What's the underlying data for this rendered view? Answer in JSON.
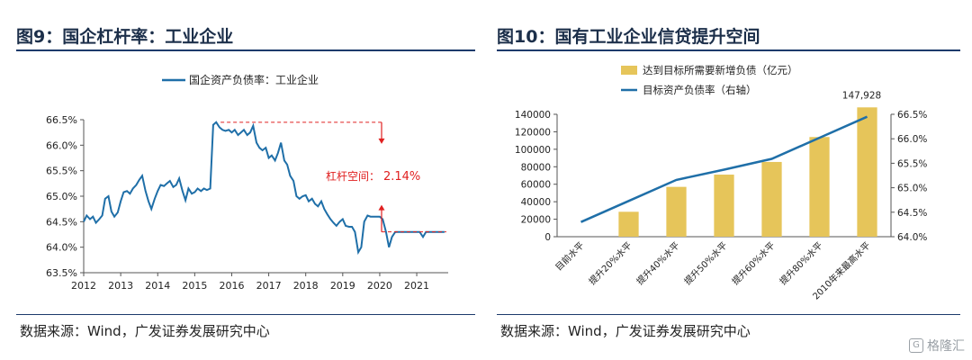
{
  "left": {
    "title": "图9：国企杠杆率：工业企业",
    "source": "数据来源：Wind，广发证券发展研究中心",
    "chart_data": {
      "type": "line",
      "title": "",
      "xlabel": "",
      "ylabel": "",
      "ylim": [
        63.5,
        66.5
      ],
      "yticks": [
        "63.5%",
        "64.0%",
        "64.5%",
        "65.0%",
        "65.5%",
        "66.0%",
        "66.5%"
      ],
      "xticks": [
        "2012",
        "2013",
        "2014",
        "2015",
        "2016",
        "2017",
        "2018",
        "2019",
        "2020",
        "2021"
      ],
      "legend_position": "top-center",
      "series": [
        {
          "name": "国企资产负债率：工业企业",
          "color": "#1f6fa8",
          "x": [
            2012.0,
            2012.08,
            2012.17,
            2012.25,
            2012.33,
            2012.42,
            2012.5,
            2012.58,
            2012.67,
            2012.75,
            2012.83,
            2012.92,
            2013.0,
            2013.08,
            2013.17,
            2013.25,
            2013.33,
            2013.42,
            2013.5,
            2013.58,
            2013.67,
            2013.75,
            2013.83,
            2013.92,
            2014.0,
            2014.08,
            2014.17,
            2014.25,
            2014.33,
            2014.42,
            2014.5,
            2014.58,
            2014.67,
            2014.75,
            2014.83,
            2014.92,
            2015.0,
            2015.08,
            2015.17,
            2015.25,
            2015.33,
            2015.42,
            2015.5,
            2015.58,
            2015.67,
            2015.75,
            2015.83,
            2015.92,
            2016.0,
            2016.08,
            2016.17,
            2016.25,
            2016.33,
            2016.42,
            2016.5,
            2016.58,
            2016.67,
            2016.75,
            2016.83,
            2016.92,
            2017.0,
            2017.08,
            2017.17,
            2017.25,
            2017.33,
            2017.42,
            2017.5,
            2017.58,
            2017.67,
            2017.75,
            2017.83,
            2017.92,
            2018.0,
            2018.08,
            2018.17,
            2018.25,
            2018.33,
            2018.42,
            2018.5,
            2018.58,
            2018.67,
            2018.75,
            2018.83,
            2018.92,
            2019.0,
            2019.08,
            2019.17,
            2019.25,
            2019.33,
            2019.42,
            2019.5,
            2019.58,
            2019.67,
            2019.75,
            2019.83,
            2019.92,
            2020.0,
            2020.08,
            2020.17,
            2020.25,
            2020.33,
            2020.42,
            2020.5,
            2020.58,
            2020.67,
            2020.75,
            2020.83,
            2020.92,
            2021.0,
            2021.08,
            2021.17,
            2021.25,
            2021.33,
            2021.42,
            2021.5,
            2021.58,
            2021.67,
            2021.75
          ],
          "y": [
            64.5,
            64.62,
            64.55,
            64.6,
            64.48,
            64.55,
            64.62,
            64.95,
            65.0,
            64.7,
            64.6,
            64.68,
            64.9,
            65.08,
            65.1,
            65.05,
            65.15,
            65.22,
            65.32,
            65.4,
            65.1,
            64.9,
            64.75,
            64.95,
            65.1,
            65.22,
            65.2,
            65.25,
            65.3,
            65.18,
            65.22,
            65.35,
            65.1,
            64.92,
            65.15,
            65.05,
            65.08,
            65.15,
            65.1,
            65.15,
            65.12,
            65.15,
            66.4,
            66.45,
            66.35,
            66.3,
            66.28,
            66.3,
            66.25,
            66.3,
            66.2,
            66.25,
            66.3,
            66.2,
            66.25,
            66.38,
            66.05,
            65.95,
            65.9,
            65.95,
            65.75,
            65.8,
            65.7,
            65.85,
            66.05,
            65.7,
            65.62,
            65.4,
            65.3,
            65.0,
            64.95,
            65.0,
            65.02,
            64.9,
            64.95,
            64.85,
            64.8,
            64.9,
            64.75,
            64.65,
            64.55,
            64.48,
            64.42,
            64.5,
            64.55,
            64.42,
            64.4,
            64.4,
            64.3,
            63.9,
            64.0,
            64.5,
            64.62,
            64.6,
            64.6,
            64.6,
            64.6,
            64.55,
            64.3,
            64.0,
            64.2,
            64.3,
            64.3,
            64.3,
            64.3,
            64.3,
            64.3,
            64.3,
            64.3,
            64.3,
            64.2,
            64.3,
            64.3,
            64.3,
            64.3,
            64.3,
            64.3,
            64.3
          ],
          "x_note": ""
        }
      ],
      "annotation": {
        "label": "杠杆空间：",
        "value": "2.14%",
        "upper": 66.45,
        "lower": 64.3,
        "color": "#e02020"
      }
    }
  },
  "right": {
    "title": "图10：国有工业企业信贷提升空间",
    "source": "数据来源：Wind，广发证券发展研究中心",
    "chart_data": {
      "type": "bar",
      "title": "",
      "categories": [
        "目前水平",
        "提升20%水平",
        "提升40%水平",
        "提升50%水平",
        "提升60%水平",
        "提升80%水平",
        "2010年来最高水平"
      ],
      "legend_position": "top-left",
      "ylim_left": [
        0,
        140000
      ],
      "yticks_left": [
        "0",
        "20000",
        "40000",
        "60000",
        "80000",
        "100000",
        "120000",
        "140000"
      ],
      "ylim_right": [
        64.0,
        66.5
      ],
      "yticks_right": [
        "64.0%",
        "64.5%",
        "65.0%",
        "65.5%",
        "66.0%",
        "66.5%"
      ],
      "series": [
        {
          "name": "达到目标所需要新增负债（亿元）",
          "type": "bar",
          "axis": "left",
          "color": "#e6c55a",
          "values": [
            0,
            28500,
            57000,
            71000,
            85500,
            114000,
            147928
          ]
        },
        {
          "name": "目标资产负债率（右轴）",
          "type": "line",
          "axis": "right",
          "color": "#1f6fa8",
          "values": [
            64.3,
            64.73,
            65.16,
            65.37,
            65.59,
            66.02,
            66.45
          ]
        }
      ],
      "data_labels": [
        {
          "category": "2010年来最高水平",
          "text": "147,928"
        }
      ]
    }
  },
  "watermark": {
    "text": "格隆汇"
  }
}
